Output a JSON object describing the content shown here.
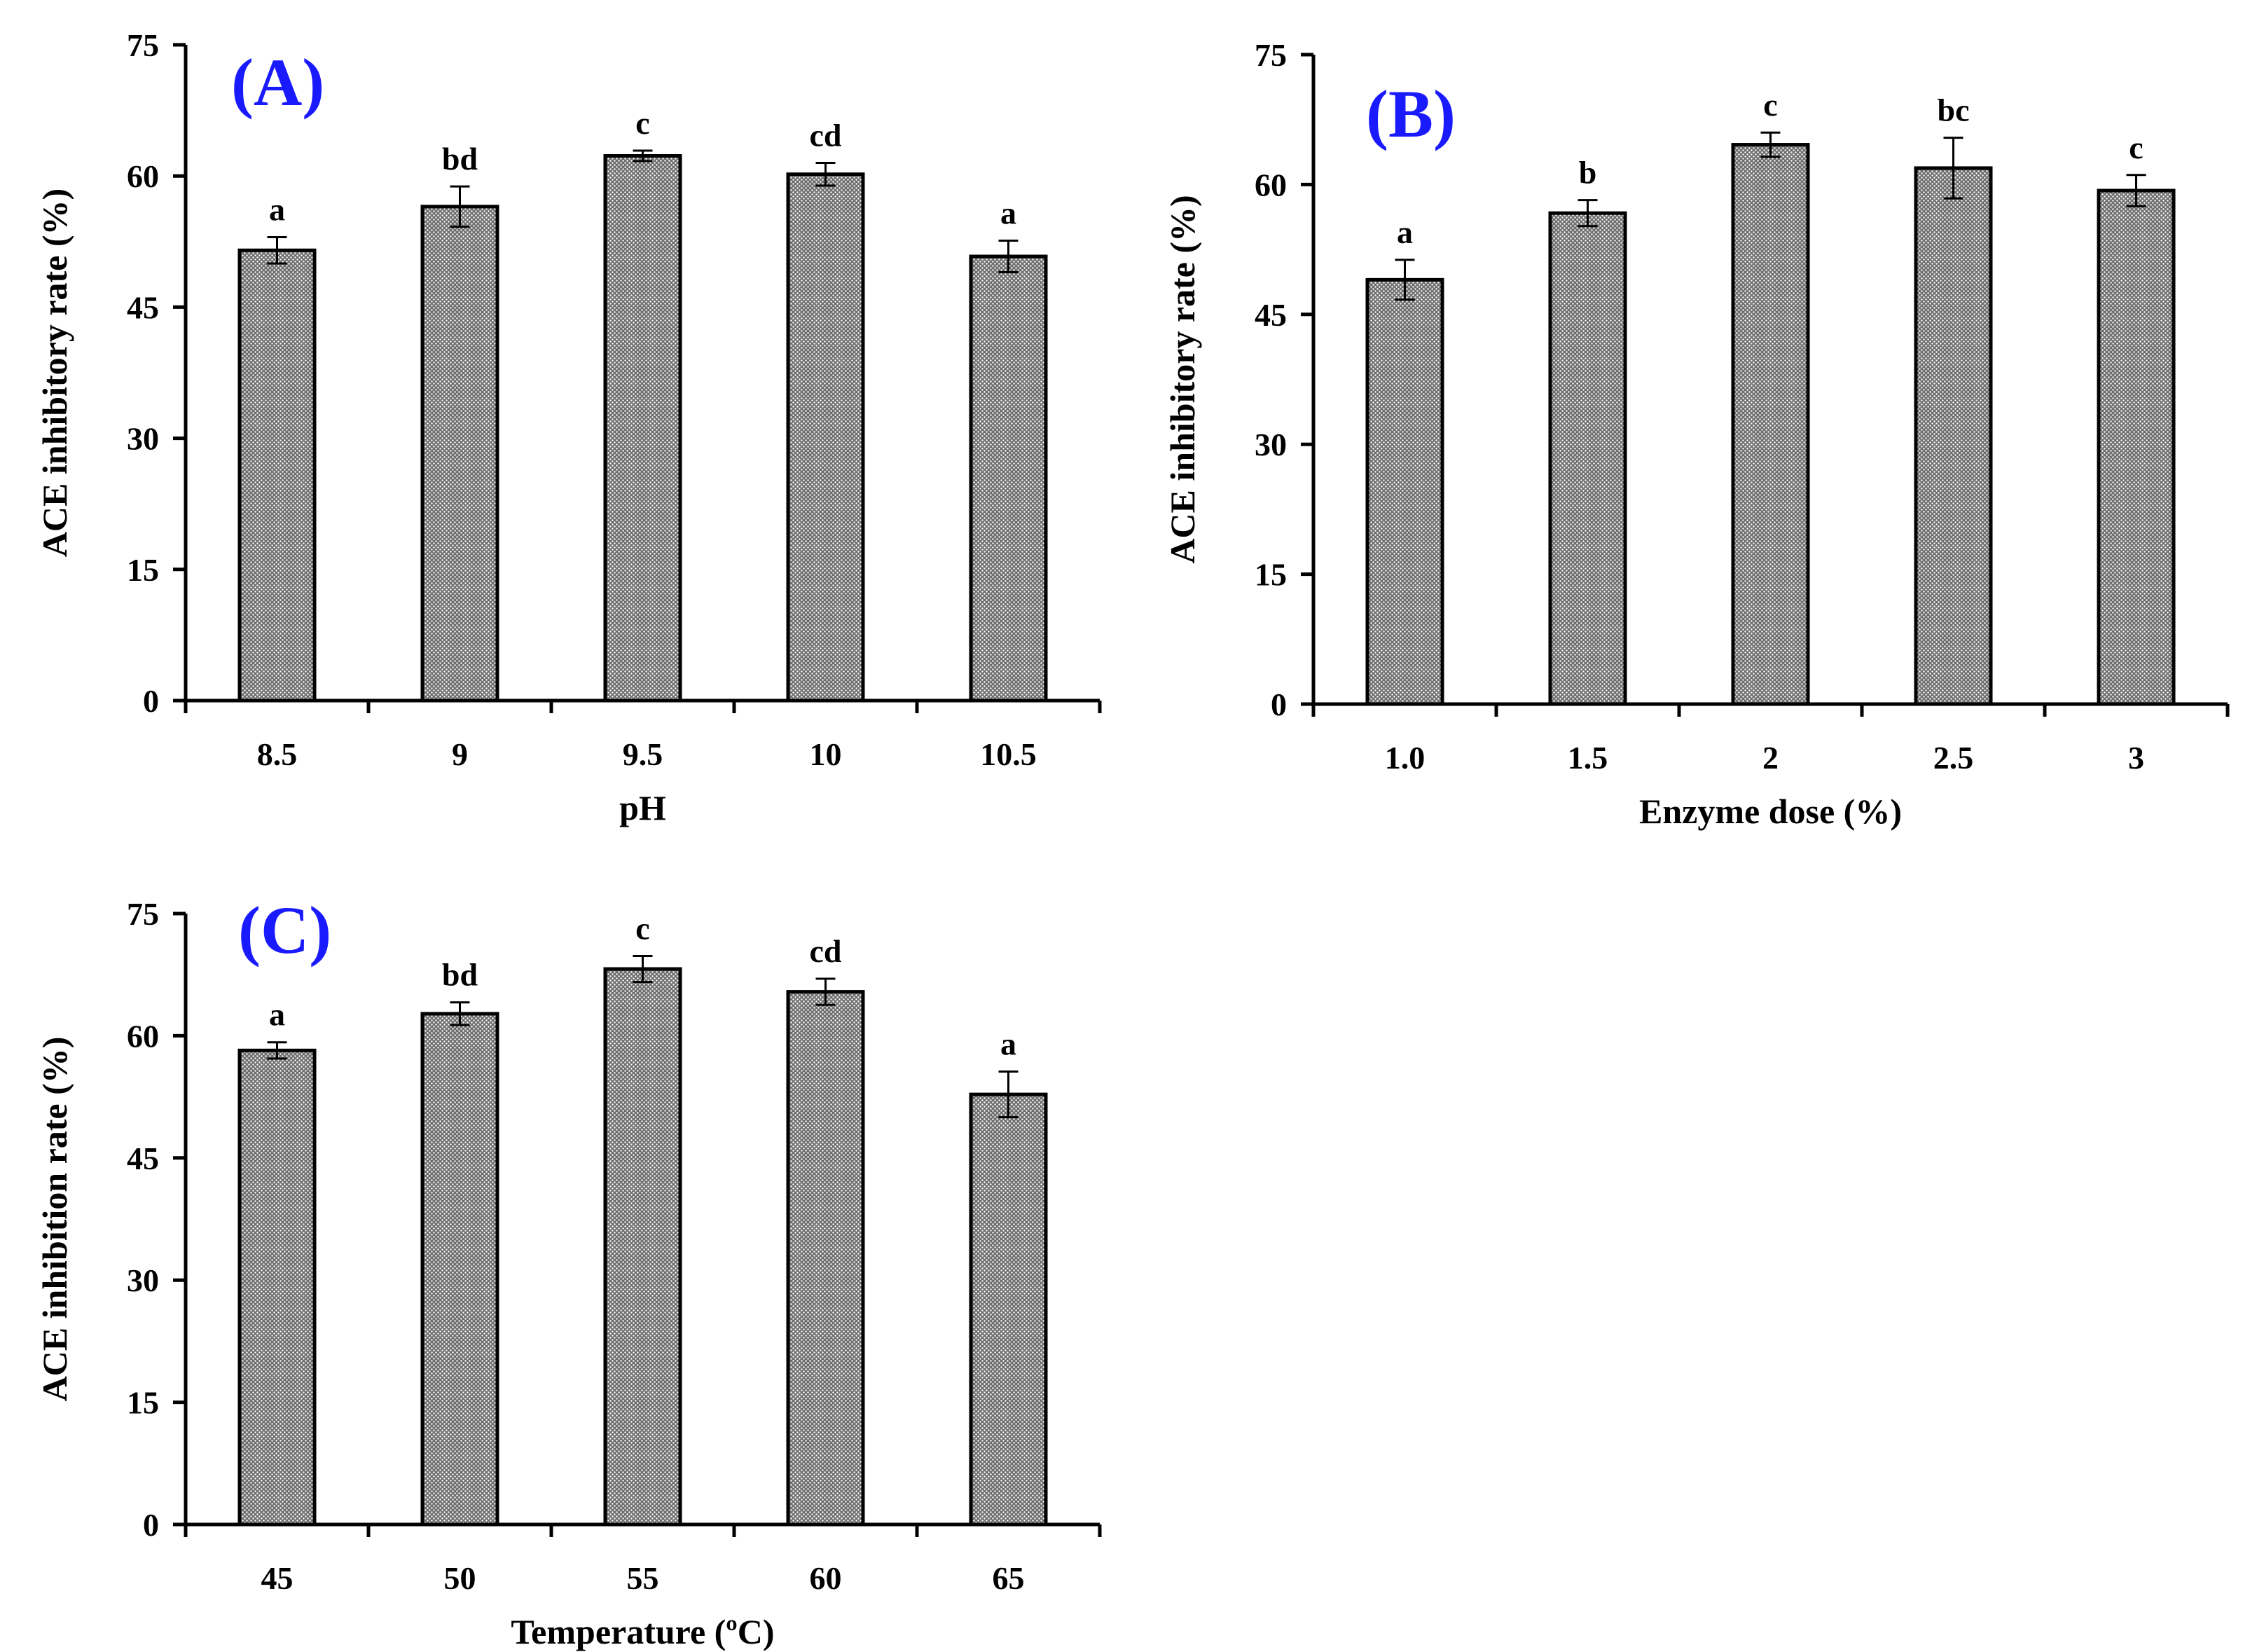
{
  "styles": {
    "panel_label_color": "#1a1aff",
    "bar_fill_color": "#6e6e6e",
    "bar_pattern_color": "#ffffff",
    "axis_color": "#000000"
  },
  "chart_data": [
    {
      "id": "A",
      "type": "bar",
      "panel_label": "(A)",
      "categories": [
        "8.5",
        "9",
        "9.5",
        "10",
        "10.5"
      ],
      "values": [
        51.5,
        56.5,
        62.3,
        60.2,
        50.8
      ],
      "errors": [
        1.5,
        2.3,
        0.6,
        1.3,
        1.8
      ],
      "significance": [
        "a",
        "bd",
        "c",
        "cd",
        "a"
      ],
      "xlabel": "pH",
      "ylabel": "ACE inhibitory rate (%)",
      "ylim": [
        0,
        75
      ],
      "yticks": [
        "0",
        "15",
        "30",
        "45",
        "60",
        "75"
      ]
    },
    {
      "id": "B",
      "type": "bar",
      "panel_label": "(B)",
      "categories": [
        "1.0",
        "1.5",
        "2",
        "2.5",
        "3"
      ],
      "values": [
        49.0,
        56.7,
        64.6,
        61.9,
        59.3
      ],
      "errors": [
        2.3,
        1.5,
        1.4,
        3.5,
        1.8
      ],
      "significance": [
        "a",
        "b",
        "c",
        "bc",
        "c"
      ],
      "xlabel": "Enzyme dose (%)",
      "ylabel": "ACE inhibitory rate (%)",
      "ylim": [
        0,
        75
      ],
      "yticks": [
        "0",
        "15",
        "30",
        "45",
        "60",
        "75"
      ]
    },
    {
      "id": "C",
      "type": "bar",
      "panel_label": "(C)",
      "categories": [
        "45",
        "50",
        "55",
        "60",
        "65"
      ],
      "values": [
        58.2,
        62.7,
        68.2,
        65.4,
        52.8
      ],
      "errors": [
        1.0,
        1.4,
        1.6,
        1.6,
        2.8
      ],
      "significance": [
        "a",
        "bd",
        "c",
        "cd",
        "a"
      ],
      "xlabel": "Temperature (ºC)",
      "ylabel": "ACE inhibition rate (%)",
      "ylim": [
        0,
        75
      ],
      "yticks": [
        "0",
        "15",
        "30",
        "45",
        "60",
        "75"
      ]
    }
  ]
}
